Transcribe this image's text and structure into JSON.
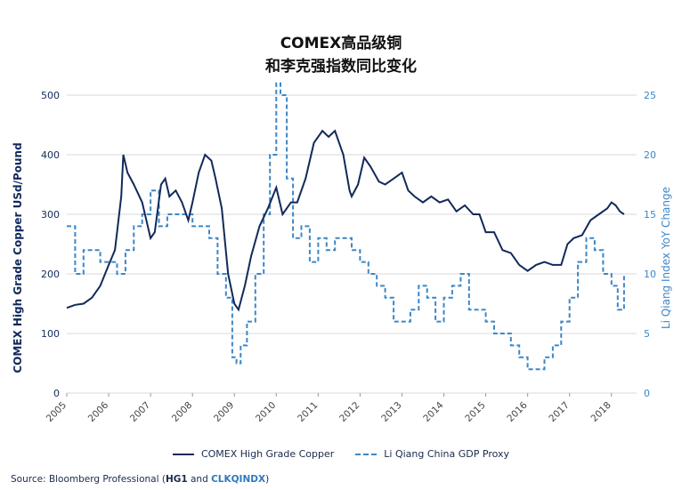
{
  "header": {
    "title_line1": "COMEX高品级铜",
    "title_line2": "和李克强指数同比变化"
  },
  "legend": {
    "series1": "COMEX High Grade Copper",
    "series2": "Li Qiang China GDP Proxy"
  },
  "source": {
    "prefix": "Source: Bloomberg Professional (",
    "ticker1": "HG1",
    "and": " and ",
    "ticker2": "CLKQINDX",
    "suffix": ")"
  },
  "colors": {
    "copper": "#12295a",
    "liqiang": "#3b87c8",
    "grid": "#d9d9d9",
    "left_axis_text": "#12295a",
    "right_axis_text": "#3b87c8"
  },
  "chart_data": {
    "type": "line",
    "title": "COMEX高品级铜 和李克强指数同比变化",
    "xlabel": "",
    "ylabel": "COMEX High Grade Copper USd/Pound",
    "y2label": "Li Qiang Index YoY Change",
    "xlim": [
      2005,
      2018.6
    ],
    "ylim": [
      0,
      500
    ],
    "y2lim": [
      0,
      25
    ],
    "yticks": [
      "0",
      "100",
      "200",
      "300",
      "400",
      "500"
    ],
    "y2ticks": [
      "0",
      "5",
      "10",
      "15",
      "20",
      "25"
    ],
    "xticks": [
      "2005",
      "2006",
      "2007",
      "2008",
      "2009",
      "2010",
      "2011",
      "2012",
      "2013",
      "2014",
      "2015",
      "2016",
      "2017",
      "2018"
    ],
    "grid": true,
    "legend_position": "bottom",
    "series": [
      {
        "name": "COMEX High Grade Copper",
        "axis": "left",
        "style": "solid",
        "x": [
          2005.0,
          2005.2,
          2005.4,
          2005.6,
          2005.8,
          2006.0,
          2006.15,
          2006.3,
          2006.35,
          2006.45,
          2006.6,
          2006.8,
          2006.9,
          2007.0,
          2007.1,
          2007.25,
          2007.35,
          2007.45,
          2007.6,
          2007.75,
          2007.9,
          2008.0,
          2008.15,
          2008.3,
          2008.45,
          2008.55,
          2008.7,
          2008.85,
          2009.0,
          2009.1,
          2009.25,
          2009.4,
          2009.6,
          2009.8,
          2010.0,
          2010.15,
          2010.35,
          2010.5,
          2010.7,
          2010.9,
          2011.1,
          2011.25,
          2011.4,
          2011.6,
          2011.75,
          2011.8,
          2011.95,
          2012.1,
          2012.25,
          2012.45,
          2012.6,
          2012.8,
          2013.0,
          2013.15,
          2013.3,
          2013.5,
          2013.7,
          2013.9,
          2014.1,
          2014.3,
          2014.5,
          2014.7,
          2014.85,
          2015.0,
          2015.2,
          2015.4,
          2015.6,
          2015.8,
          2016.0,
          2016.2,
          2016.4,
          2016.6,
          2016.8,
          2016.95,
          2017.1,
          2017.3,
          2017.5,
          2017.7,
          2017.9,
          2018.0,
          2018.1,
          2018.2,
          2018.3
        ],
        "values": [
          143,
          148,
          150,
          160,
          180,
          215,
          240,
          330,
          400,
          370,
          350,
          320,
          290,
          260,
          270,
          350,
          360,
          330,
          340,
          320,
          290,
          320,
          370,
          400,
          390,
          360,
          310,
          200,
          150,
          140,
          180,
          230,
          280,
          310,
          345,
          300,
          320,
          320,
          360,
          420,
          440,
          430,
          440,
          400,
          340,
          330,
          350,
          395,
          380,
          355,
          350,
          360,
          370,
          340,
          330,
          320,
          330,
          320,
          325,
          305,
          315,
          300,
          300,
          270,
          270,
          240,
          235,
          215,
          205,
          215,
          220,
          215,
          215,
          250,
          260,
          265,
          290,
          300,
          310,
          320,
          315,
          305,
          300
        ]
      },
      {
        "name": "Li Qiang China GDP Proxy",
        "axis": "right",
        "style": "dashed",
        "x": [
          2005.0,
          2005.2,
          2005.4,
          2005.6,
          2005.8,
          2006.0,
          2006.2,
          2006.4,
          2006.6,
          2006.8,
          2007.0,
          2007.2,
          2007.4,
          2007.6,
          2007.8,
          2008.0,
          2008.2,
          2008.4,
          2008.6,
          2008.8,
          2008.95,
          2009.05,
          2009.15,
          2009.3,
          2009.5,
          2009.7,
          2009.85,
          2010.0,
          2010.1,
          2010.25,
          2010.4,
          2010.6,
          2010.8,
          2011.0,
          2011.2,
          2011.4,
          2011.6,
          2011.8,
          2012.0,
          2012.2,
          2012.4,
          2012.6,
          2012.8,
          2013.0,
          2013.2,
          2013.4,
          2013.6,
          2013.8,
          2014.0,
          2014.2,
          2014.4,
          2014.6,
          2014.8,
          2015.0,
          2015.2,
          2015.4,
          2015.6,
          2015.8,
          2016.0,
          2016.2,
          2016.4,
          2016.6,
          2016.8,
          2017.0,
          2017.2,
          2017.4,
          2017.6,
          2017.8,
          2018.0,
          2018.15,
          2018.3
        ],
        "values": [
          14,
          10,
          12,
          12,
          11,
          11,
          10,
          12,
          14,
          15,
          17,
          14,
          15,
          15,
          15,
          14,
          14,
          13,
          10,
          8,
          3,
          2.5,
          4,
          6,
          10,
          15,
          20,
          26,
          25,
          18,
          13,
          14,
          11,
          13,
          12,
          13,
          13,
          12,
          11,
          10,
          9,
          8,
          6,
          6,
          7,
          9,
          8,
          6,
          8,
          9,
          10,
          7,
          7,
          6,
          5,
          5,
          4,
          3,
          2,
          2,
          3,
          4,
          6,
          8,
          11,
          13,
          12,
          10,
          9,
          7,
          10
        ]
      }
    ]
  }
}
